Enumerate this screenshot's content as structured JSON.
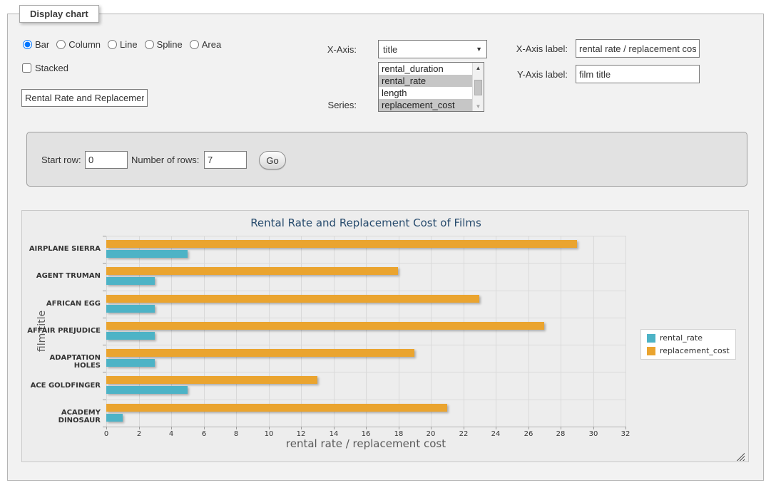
{
  "page": {
    "legend": "Display chart"
  },
  "icons": {
    "dropdown_arrow": "▼",
    "scroll_up": "▲",
    "scroll_down": "▼"
  },
  "controls": {
    "chart_types": [
      "Bar",
      "Column",
      "Line",
      "Spline",
      "Area"
    ],
    "selected_chart_type": "Bar",
    "stacked_label": "Stacked",
    "stacked_checked": false,
    "chart_title_input_value": "Rental Rate and Replacement Cost of Films",
    "x_axis_label_text": "X-Axis:",
    "x_axis_selected": "title",
    "series_label_text": "Series:",
    "series_options": [
      {
        "label": "rental_duration",
        "selected": false
      },
      {
        "label": "rental_rate",
        "selected": true
      },
      {
        "label": "length",
        "selected": false
      },
      {
        "label": "replacement_cost",
        "selected": true
      }
    ],
    "x_axis_label_field": {
      "label": "X-Axis label:",
      "value": "rental rate / replacement cost"
    },
    "y_axis_label_field": {
      "label": "Y-Axis label:",
      "value": "film title"
    }
  },
  "row_controls": {
    "start_row_label": "Start row:",
    "start_row_value": "0",
    "num_rows_label": "Number of rows:",
    "num_rows_value": "7",
    "go_label": "Go"
  },
  "chart_data": {
    "type": "bar",
    "orientation": "horizontal",
    "title": "Rental Rate and Replacement Cost of Films",
    "xlabel": "rental rate / replacement cost",
    "ylabel": "film title",
    "categories": [
      "AIRPLANE SIERRA",
      "AGENT TRUMAN",
      "AFRICAN EGG",
      "AFFAIR PREJUDICE",
      "ADAPTATION HOLES",
      "ACE GOLDFINGER",
      "ACADEMY DINOSAUR"
    ],
    "series": [
      {
        "name": "rental_rate",
        "color": "#4DB3C6",
        "values": [
          4.99,
          2.99,
          2.99,
          2.99,
          2.99,
          4.99,
          0.99
        ]
      },
      {
        "name": "replacement_cost",
        "color": "#EAA42F",
        "values": [
          28.99,
          17.99,
          22.99,
          26.99,
          18.99,
          12.99,
          20.99
        ]
      }
    ],
    "xlim": [
      0,
      32
    ],
    "x_tick_step": 2,
    "grid": true,
    "legend_position": "right",
    "bar_group_order": "second_series_on_top"
  }
}
